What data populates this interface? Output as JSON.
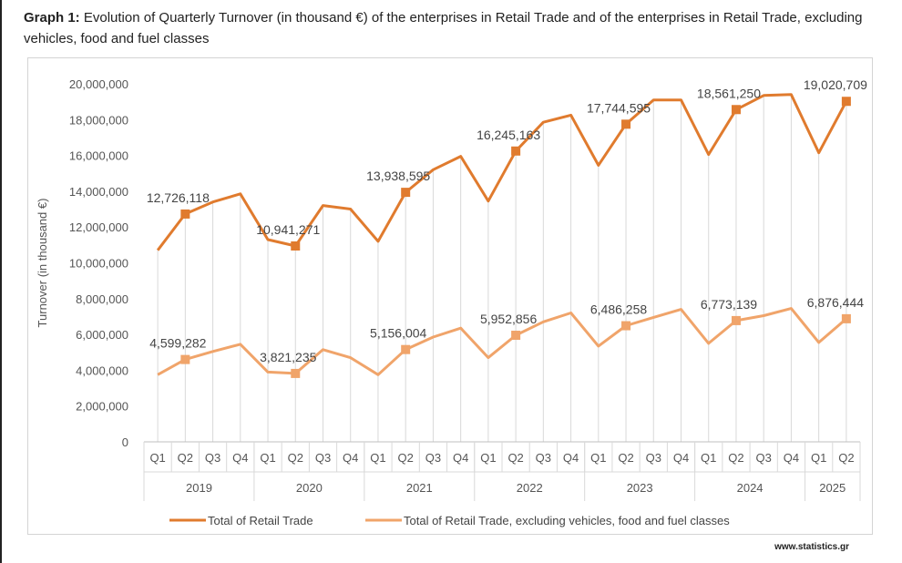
{
  "figure": {
    "title_lead": "Graph 1:",
    "title_rest": " Evolution of Quarterly Turnover (in thousand €) of the enterprises in Retail Trade and of the enterprises in Retail Trade, excluding vehicles, food and fuel classes",
    "source": "www.statistics.gr"
  },
  "chart_data": {
    "type": "line",
    "ylabel": "Turnover (in thousand €)",
    "ylim": [
      0,
      20000000
    ],
    "yticks": [
      0,
      2000000,
      4000000,
      6000000,
      8000000,
      10000000,
      12000000,
      14000000,
      16000000,
      18000000,
      20000000
    ],
    "ytick_labels": [
      "0",
      "2,000,000",
      "4,000,000",
      "6,000,000",
      "8,000,000",
      "10,000,000",
      "12,000,000",
      "14,000,000",
      "16,000,000",
      "18,000,000",
      "20,000,000"
    ],
    "x_quarters": [
      "Q1",
      "Q2",
      "Q3",
      "Q4",
      "Q1",
      "Q2",
      "Q3",
      "Q4",
      "Q1",
      "Q2",
      "Q3",
      "Q4",
      "Q1",
      "Q2",
      "Q3",
      "Q4",
      "Q1",
      "Q2",
      "Q3",
      "Q4",
      "Q1",
      "Q2",
      "Q3",
      "Q4",
      "Q1",
      "Q2"
    ],
    "x_years": [
      {
        "label": "2019",
        "span": 4
      },
      {
        "label": "2020",
        "span": 4
      },
      {
        "label": "2021",
        "span": 4
      },
      {
        "label": "2022",
        "span": 4
      },
      {
        "label": "2023",
        "span": 4
      },
      {
        "label": "2024",
        "span": 4
      },
      {
        "label": "2025",
        "span": 2
      }
    ],
    "grid": "vertical",
    "legend_position": "bottom",
    "series": [
      {
        "name": "Total of Retail Trade",
        "color": "#e07b2e",
        "values": [
          10700000,
          12726118,
          13400000,
          13850000,
          11300000,
          10941271,
          13200000,
          13000000,
          11200000,
          13938595,
          15200000,
          15950000,
          13450000,
          16245163,
          17850000,
          18250000,
          15450000,
          17744595,
          19100000,
          19100000,
          16050000,
          18561250,
          19350000,
          19400000,
          16150000,
          19020709
        ],
        "labels": [
          {
            "index": 1,
            "text": "12,726,118"
          },
          {
            "index": 5,
            "text": "10,941,271"
          },
          {
            "index": 9,
            "text": "13,938,595"
          },
          {
            "index": 13,
            "text": "16,245,163"
          },
          {
            "index": 17,
            "text": "17,744,595"
          },
          {
            "index": 21,
            "text": "18,561,250"
          },
          {
            "index": 25,
            "text": "19,020,709"
          }
        ]
      },
      {
        "name": "Total of Retail Trade, excluding vehicles, food and fuel classes",
        "color": "#f0a46a",
        "values": [
          3750000,
          4599282,
          5050000,
          5450000,
          3900000,
          3821235,
          5150000,
          4700000,
          3750000,
          5156004,
          5850000,
          6350000,
          4700000,
          5952856,
          6700000,
          7200000,
          5350000,
          6486258,
          6950000,
          7400000,
          5500000,
          6773139,
          7050000,
          7450000,
          5550000,
          6876444
        ],
        "labels": [
          {
            "index": 1,
            "text": "4,599,282"
          },
          {
            "index": 5,
            "text": "3,821,235"
          },
          {
            "index": 9,
            "text": "5,156,004"
          },
          {
            "index": 13,
            "text": "5,952,856"
          },
          {
            "index": 17,
            "text": "6,486,258"
          },
          {
            "index": 21,
            "text": "6,773,139"
          },
          {
            "index": 25,
            "text": "6,876,444"
          }
        ]
      }
    ]
  }
}
